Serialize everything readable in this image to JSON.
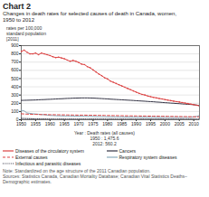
{
  "chart_data": {
    "type": "line",
    "title": "Chart 2",
    "subtitle": [
      "Changes in death rates for selected causes of death in Canada, women,",
      "1950 to 2012"
    ],
    "ylabel": [
      "rates per 100,000",
      "standard population",
      "[2011]"
    ],
    "annotations": [
      "Year : Death rates (all causes)\n1950 : 1,475.6\n2012: 560.2",
      "Note: Standardized on the age structure of the 2011 Canadian population.",
      "Sources: Statistics Canada, Canadian Mortality Database; Canadian Vital Statistics Deaths– Demographic estimates."
    ],
    "x": [
      1950,
      1951,
      1952,
      1953,
      1954,
      1955,
      1956,
      1957,
      1958,
      1959,
      1960,
      1961,
      1962,
      1963,
      1964,
      1965,
      1966,
      1967,
      1968,
      1969,
      1970,
      1971,
      1972,
      1973,
      1974,
      1975,
      1976,
      1977,
      1978,
      1979,
      1980,
      1981,
      1982,
      1983,
      1984,
      1985,
      1986,
      1987,
      1988,
      1989,
      1990,
      1991,
      1992,
      1993,
      1994,
      1995,
      1996,
      1997,
      1998,
      1999,
      2000,
      2001,
      2002,
      2003,
      2004,
      2005,
      2006,
      2007,
      2008,
      2009,
      2010,
      2011,
      2012
    ],
    "series": [
      {
        "name": "Diseases of the circulatory system",
        "color": "#d44",
        "line_style": "solid",
        "marker": "point",
        "values": [
          830,
          845,
          820,
          800,
          800,
          810,
          790,
          810,
          800,
          790,
          780,
          765,
          755,
          760,
          750,
          740,
          725,
          710,
          720,
          710,
          695,
          675,
          670,
          645,
          630,
          605,
          580,
          555,
          535,
          510,
          495,
          470,
          455,
          440,
          425,
          410,
          395,
          380,
          365,
          350,
          335,
          320,
          308,
          300,
          288,
          280,
          272,
          265,
          258,
          252,
          245,
          238,
          232,
          226,
          220,
          215,
          208,
          202,
          196,
          190,
          183,
          176,
          168
        ]
      },
      {
        "name": "Cancers",
        "color": "#334",
        "line_style": "solid",
        "values": [
          235,
          236,
          237,
          238,
          239,
          240,
          242,
          244,
          245,
          247,
          248,
          250,
          252,
          254,
          255,
          257,
          259,
          260,
          262,
          263,
          264,
          265,
          265,
          265,
          264,
          263,
          261,
          259,
          257,
          255,
          253,
          250,
          248,
          246,
          244,
          242,
          240,
          238,
          236,
          234,
          231,
          229,
          227,
          225,
          222,
          220,
          218,
          215,
          213,
          210,
          207,
          205,
          202,
          200,
          197,
          195,
          192,
          190,
          187,
          185,
          182,
          178,
          172
        ]
      },
      {
        "name": "External causes",
        "color": "#d44",
        "line_style": "dashed",
        "values": [
          72,
          70,
          68,
          67,
          66,
          65,
          64,
          63,
          63,
          62,
          61,
          61,
          60,
          60,
          59,
          59,
          58,
          58,
          57,
          57,
          56,
          56,
          56,
          55,
          55,
          54,
          54,
          53,
          53,
          52,
          51,
          51,
          50,
          50,
          49,
          49,
          48,
          48,
          47,
          47,
          46,
          46,
          45,
          45,
          44,
          44,
          43,
          43,
          42,
          42,
          41,
          41,
          40,
          40,
          39,
          39,
          38,
          38,
          37,
          37,
          36,
          36,
          35
        ]
      },
      {
        "name": "Respiratory system diseases",
        "color": "#8ab",
        "line_style": "solid",
        "values": [
          115,
          108,
          82,
          78,
          72,
          70,
          67,
          62,
          61,
          57,
          52,
          51,
          49,
          48,
          47,
          46,
          46,
          45,
          44,
          43,
          42,
          42,
          41,
          40,
          40,
          39,
          38,
          38,
          37,
          37,
          36,
          36,
          35,
          35,
          34,
          34,
          33,
          33,
          32,
          32,
          31,
          31,
          31,
          30,
          30,
          30,
          30,
          29,
          29,
          29,
          29,
          29,
          29,
          29,
          29,
          29,
          29,
          29,
          29,
          30,
          34,
          40,
          52
        ]
      },
      {
        "name": "Infectious and parasitic diseases",
        "color": "#334",
        "line_style": "dotted",
        "values": [
          16,
          15,
          14,
          13,
          12,
          11,
          10,
          9,
          9,
          9,
          8,
          8,
          8,
          8,
          8,
          8,
          8,
          8,
          8,
          8,
          8,
          8,
          8,
          8,
          8,
          8,
          8,
          8,
          8,
          8,
          8,
          8,
          8,
          8,
          8,
          8,
          8,
          8,
          8,
          8,
          8,
          8,
          8,
          8,
          8,
          8,
          8,
          8,
          8,
          8,
          8,
          8,
          8,
          8,
          8,
          8,
          8,
          8,
          8,
          8,
          8,
          8,
          8
        ]
      }
    ],
    "xlim": [
      1950,
      2012
    ],
    "xticks": [
      1950,
      1955,
      1960,
      1965,
      1970,
      1975,
      1980,
      1985,
      1990,
      1995,
      2000,
      2005,
      2010
    ],
    "ylim": [
      0,
      900
    ],
    "yticks": [
      0,
      100,
      200,
      300,
      400,
      500,
      600,
      700,
      800,
      900
    ],
    "grid": true
  }
}
